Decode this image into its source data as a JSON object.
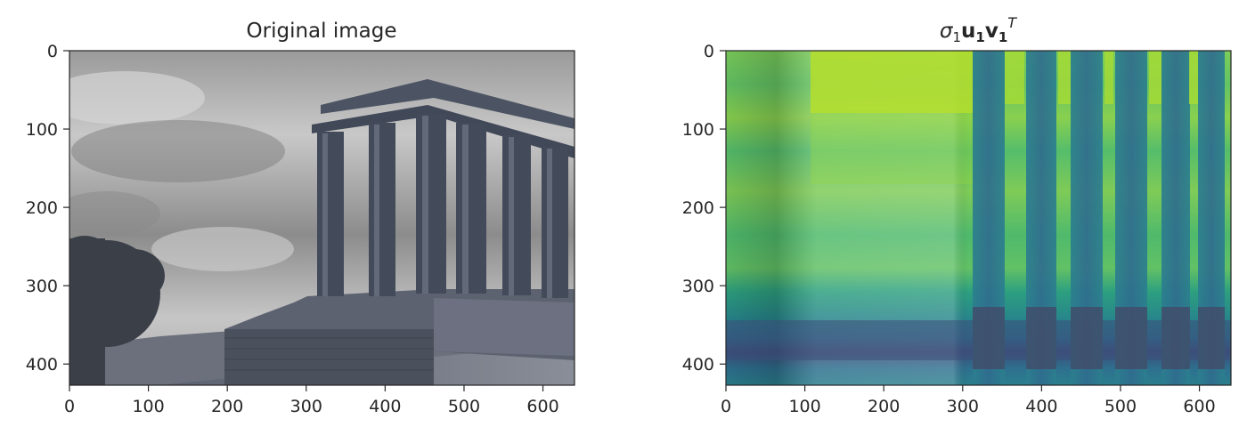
{
  "figure": {
    "left_panel": {
      "title": "Original image",
      "x_ticks": [
        "0",
        "100",
        "200",
        "300",
        "400",
        "500",
        "600"
      ],
      "y_ticks": [
        "0",
        "100",
        "200",
        "300",
        "400"
      ],
      "xlim": [
        0,
        640
      ],
      "ylim": [
        427,
        0
      ],
      "content": "grayscale photo of a ruined temple colonnade on a hill with a tree at left and cloudy sky"
    },
    "right_panel": {
      "title": "σ₁u₁v₁ᵀ",
      "x_ticks": [
        "0",
        "100",
        "200",
        "300",
        "400",
        "500",
        "600"
      ],
      "y_ticks": [
        "0",
        "100",
        "200",
        "300",
        "400"
      ],
      "xlim": [
        0,
        640
      ],
      "ylim": [
        427,
        0
      ],
      "colormap": "viridis"
    }
  },
  "colors": {
    "sky_light": "#b8b8b8",
    "stone_dark": "#3d4452",
    "viridis_high": "#b5de2b",
    "viridis_mid": "#35b779",
    "viridis_low": "#26828e",
    "viridis_dark": "#414d6b"
  }
}
